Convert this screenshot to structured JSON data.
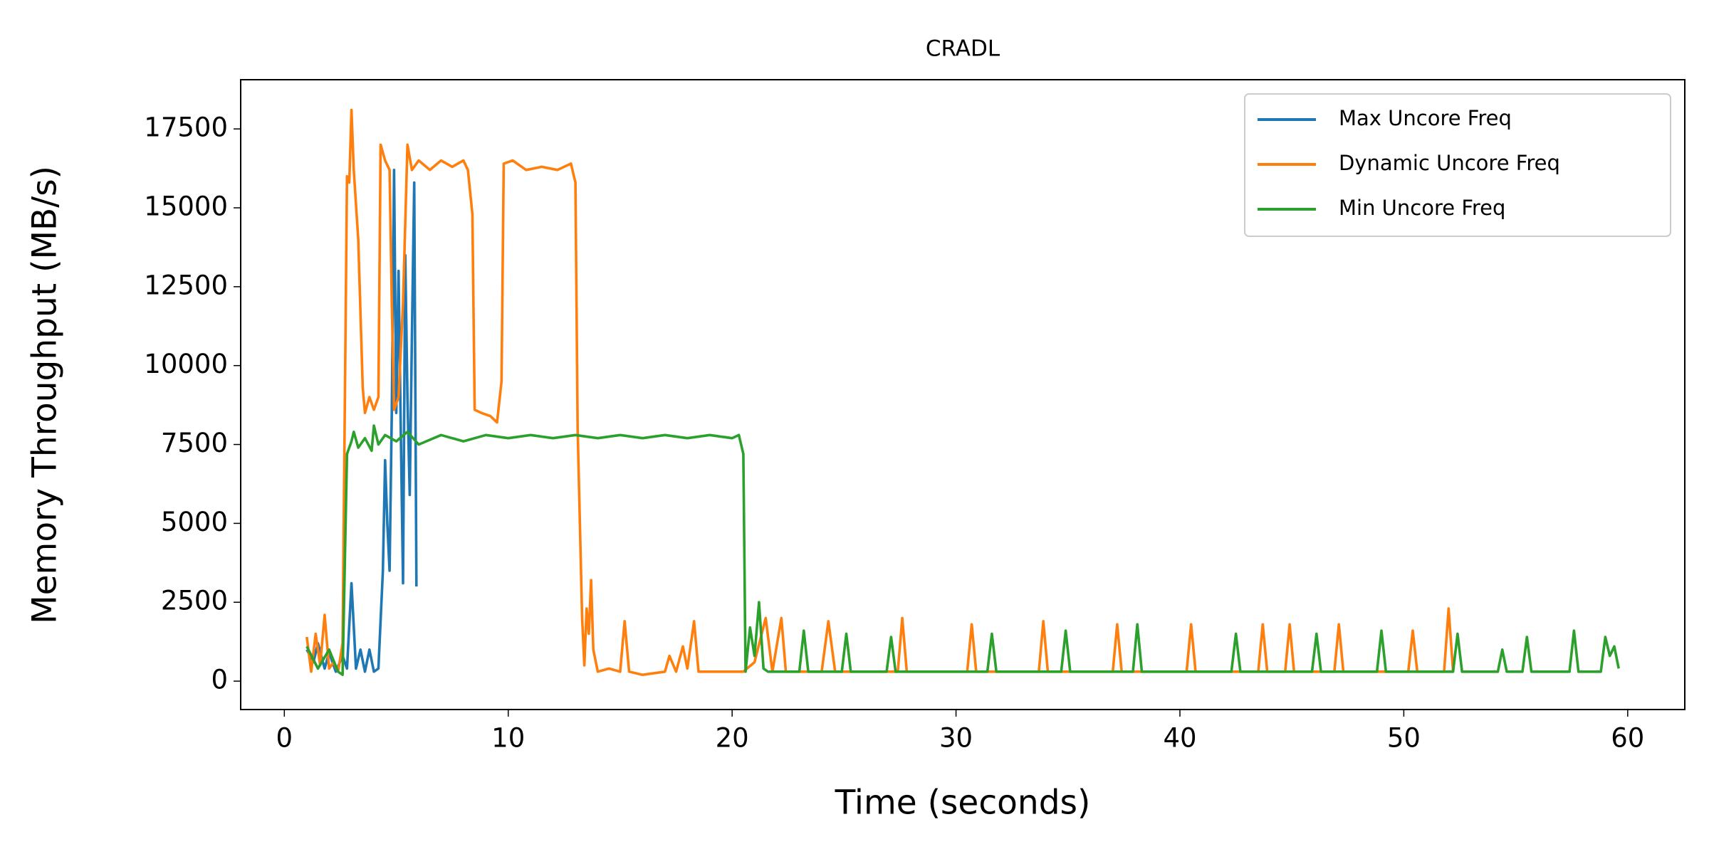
{
  "chart_data": {
    "type": "line",
    "title": "CRADL",
    "xlabel": "Time (seconds)",
    "ylabel": "Memory Throughput (MB/s)",
    "xlim": [
      -1.95,
      62.55
    ],
    "ylim": [
      -900,
      19060
    ],
    "xticks": [
      0,
      10,
      20,
      30,
      40,
      50,
      60
    ],
    "yticks": [
      0,
      2500,
      5000,
      7500,
      10000,
      12500,
      15000,
      17500
    ],
    "legend": "upper right",
    "grid": false,
    "series": [
      {
        "name": "Max Uncore Freq",
        "color": "#1f77b4",
        "x": [
          1.0,
          1.3,
          1.5,
          1.8,
          2.0,
          2.3,
          2.6,
          2.8,
          3.0,
          3.2,
          3.4,
          3.6,
          3.8,
          4.0,
          4.2,
          4.4,
          4.5,
          4.6,
          4.7,
          4.8,
          4.9,
          5.0,
          5.1,
          5.2,
          5.3,
          5.4,
          5.5,
          5.6,
          5.7,
          5.8,
          5.9
        ],
        "values": [
          1000,
          600,
          1200,
          400,
          900,
          300,
          800,
          400,
          3100,
          400,
          1000,
          300,
          1000,
          300,
          400,
          3500,
          7000,
          5000,
          3500,
          8500,
          16200,
          8500,
          13000,
          8000,
          3100,
          13500,
          9000,
          5900,
          11000,
          15800,
          3000
        ]
      },
      {
        "name": "Dynamic Uncore Freq",
        "color": "#ff7f0e",
        "x": [
          1.0,
          1.2,
          1.4,
          1.6,
          1.8,
          2.0,
          2.2,
          2.4,
          2.6,
          2.8,
          2.9,
          3.0,
          3.1,
          3.3,
          3.5,
          3.6,
          3.8,
          4.0,
          4.2,
          4.3,
          4.5,
          4.7,
          4.8,
          4.9,
          5.1,
          5.3,
          5.5,
          5.7,
          6.0,
          6.5,
          7.0,
          7.5,
          8.0,
          8.2,
          8.4,
          8.5,
          8.8,
          9.2,
          9.5,
          9.7,
          9.8,
          10.2,
          10.8,
          11.5,
          12.2,
          12.8,
          13.0,
          13.1,
          13.3,
          13.4,
          13.5,
          13.6,
          13.7,
          13.8,
          14.0,
          14.5,
          15.0,
          15.2,
          15.4,
          16.0,
          17.0,
          17.2,
          17.5,
          17.8,
          18.0,
          18.3,
          18.5,
          19.0,
          20.0,
          20.5,
          21.0,
          21.5,
          21.8,
          22.2,
          22.4,
          24.0,
          24.3,
          24.6,
          27.4,
          27.6,
          27.8,
          30.5,
          30.7,
          30.9,
          33.7,
          33.9,
          34.1,
          37.0,
          37.2,
          37.4,
          40.3,
          40.5,
          40.7,
          43.5,
          43.7,
          43.9,
          44.7,
          44.9,
          45.1,
          46.9,
          47.1,
          47.3,
          50.2,
          50.4,
          50.6,
          51.8,
          52.0,
          52.2
        ],
        "values": [
          1400,
          300,
          1500,
          500,
          2100,
          400,
          600,
          300,
          1200,
          16000,
          15800,
          18100,
          16200,
          14000,
          9300,
          8500,
          9000,
          8600,
          9000,
          17000,
          16500,
          16200,
          12000,
          8600,
          9000,
          12000,
          17000,
          16200,
          16500,
          16200,
          16500,
          16300,
          16500,
          16200,
          14800,
          8600,
          8500,
          8400,
          8200,
          9500,
          16400,
          16500,
          16200,
          16300,
          16200,
          16400,
          15800,
          8000,
          2000,
          500,
          2300,
          1500,
          3200,
          1000,
          300,
          400,
          300,
          1900,
          300,
          200,
          300,
          800,
          300,
          1100,
          400,
          1900,
          300,
          300,
          300,
          300,
          600,
          2000,
          300,
          2000,
          300,
          300,
          1900,
          300,
          300,
          2000,
          300,
          300,
          1800,
          300,
          300,
          1900,
          300,
          300,
          1800,
          300,
          300,
          1800,
          300,
          300,
          1800,
          300,
          300,
          1800,
          300,
          300,
          1800,
          300,
          300,
          1600,
          300,
          300,
          2300,
          300
        ]
      },
      {
        "name": "Min Uncore Freq",
        "color": "#2ca02c",
        "x": [
          1.0,
          1.5,
          2.0,
          2.4,
          2.6,
          2.8,
          3.0,
          3.1,
          3.3,
          3.6,
          3.9,
          4.0,
          4.2,
          4.5,
          5,
          5.5,
          6,
          7,
          8,
          9,
          10,
          11,
          12,
          13,
          14,
          15,
          16,
          17,
          18,
          19,
          20,
          20.3,
          20.5,
          20.6,
          20.8,
          21.0,
          21.2,
          21.4,
          21.6,
          23.0,
          23.2,
          23.4,
          24.9,
          25.1,
          25.3,
          26.9,
          27.1,
          27.3,
          31.4,
          31.6,
          31.8,
          34.7,
          34.9,
          35.1,
          37.9,
          38.1,
          38.3,
          42.3,
          42.5,
          42.7,
          45.9,
          46.1,
          46.3,
          48.8,
          49.0,
          49.2,
          52.2,
          52.4,
          52.6,
          54.2,
          54.4,
          54.6,
          55.3,
          55.5,
          55.7,
          57.4,
          57.6,
          57.8,
          58.8,
          59.0,
          59.2,
          59.4,
          59.6
        ],
        "values": [
          1100,
          400,
          1000,
          300,
          200,
          7200,
          7600,
          7900,
          7400,
          7700,
          7300,
          8100,
          7500,
          7800,
          7600,
          7900,
          7500,
          7800,
          7600,
          7800,
          7700,
          7800,
          7700,
          7800,
          7700,
          7800,
          7700,
          7800,
          7700,
          7800,
          7700,
          7800,
          7200,
          300,
          1700,
          800,
          2500,
          400,
          300,
          300,
          1600,
          300,
          300,
          1500,
          300,
          300,
          1400,
          300,
          300,
          1500,
          300,
          300,
          1600,
          300,
          300,
          1800,
          300,
          300,
          1500,
          300,
          300,
          1500,
          300,
          300,
          1600,
          300,
          300,
          1500,
          300,
          300,
          1000,
          300,
          300,
          1400,
          300,
          300,
          1600,
          300,
          300,
          1400,
          800,
          1100,
          400
        ]
      }
    ]
  }
}
